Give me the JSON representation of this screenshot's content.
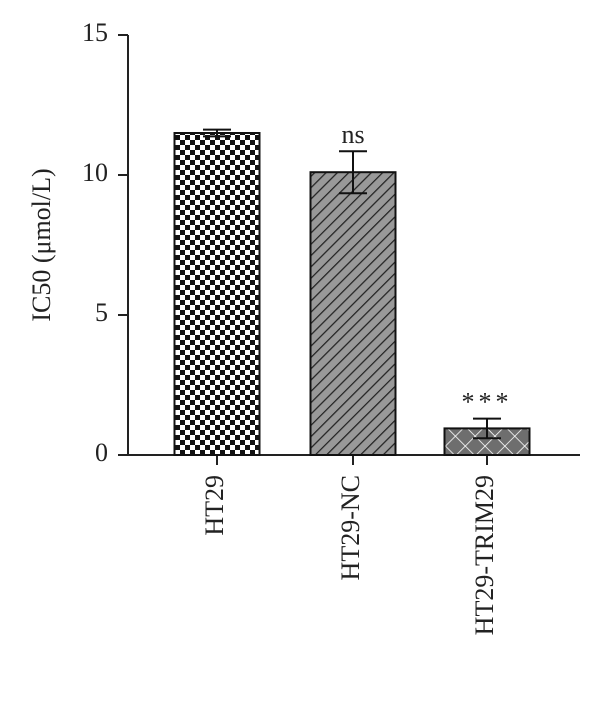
{
  "chart_data": {
    "type": "bar",
    "y_label": "IC50 (μmol/L)",
    "categories": [
      "HT29",
      "HT29-NC",
      "HT29-TRIM29"
    ],
    "values": [
      11.5,
      10.1,
      0.95
    ],
    "errors": [
      0.12,
      0.75,
      0.35
    ],
    "value_annotations": [
      null,
      "ns",
      "***"
    ],
    "patterns": [
      "checker",
      "hatch",
      "crosshatch"
    ],
    "ylim": [
      0,
      15
    ],
    "yticks": [
      0,
      5,
      10,
      15
    ],
    "grid": false
  }
}
